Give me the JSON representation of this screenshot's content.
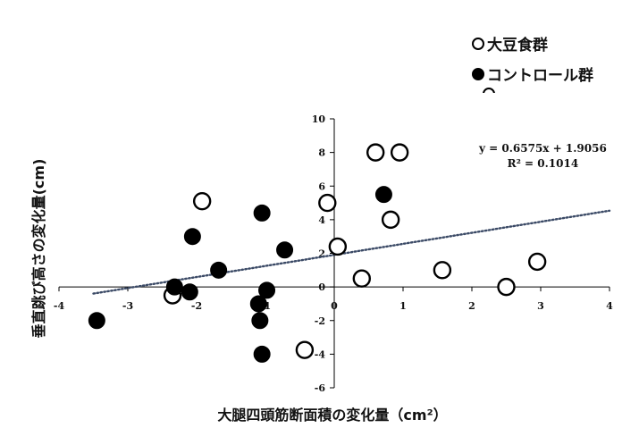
{
  "chart_data": {
    "type": "scatter",
    "title": "",
    "xlabel": "大腿四頭筋断面積の変化量（cm²）",
    "ylabel": "垂直跳び高さの変化量(cm)",
    "xlim": [
      -4,
      4
    ],
    "ylim": [
      -6,
      10
    ],
    "x_ticks": [
      "-4",
      "-3",
      "-2",
      "-1",
      "0",
      "1",
      "2",
      "3",
      "4"
    ],
    "y_ticks": [
      "-6",
      "-4",
      "-2",
      "0",
      "2",
      "4",
      "6",
      "8",
      "10"
    ],
    "grid": false,
    "legend_position": "top-right",
    "series": [
      {
        "name": "大豆食群",
        "marker": "open-circle",
        "points": [
          {
            "x": -2.35,
            "y": -0.5
          },
          {
            "x": -1.92,
            "y": 5.1
          },
          {
            "x": -0.43,
            "y": -3.75
          },
          {
            "x": -0.1,
            "y": 5.0
          },
          {
            "x": 0.05,
            "y": 2.4
          },
          {
            "x": 0.4,
            "y": 0.5
          },
          {
            "x": 0.6,
            "y": 8.0
          },
          {
            "x": 0.82,
            "y": 4.0
          },
          {
            "x": 0.95,
            "y": 8.0
          },
          {
            "x": 1.57,
            "y": 1.0
          },
          {
            "x": 2.5,
            "y": 0.0
          },
          {
            "x": 2.95,
            "y": 1.5
          }
        ]
      },
      {
        "name": "コントロール群",
        "marker": "filled-circle",
        "points": [
          {
            "x": -3.45,
            "y": -2.0
          },
          {
            "x": -2.32,
            "y": 0.0
          },
          {
            "x": -2.1,
            "y": -0.3
          },
          {
            "x": -2.06,
            "y": 3.0
          },
          {
            "x": -1.68,
            "y": 1.0
          },
          {
            "x": -1.1,
            "y": -1.0
          },
          {
            "x": -1.08,
            "y": -2.0
          },
          {
            "x": -1.05,
            "y": 4.4
          },
          {
            "x": -1.05,
            "y": -4.0
          },
          {
            "x": -0.98,
            "y": -0.2
          },
          {
            "x": -0.72,
            "y": 2.2
          },
          {
            "x": 0.72,
            "y": 5.5
          }
        ]
      }
    ],
    "trendline": {
      "style": "dotted",
      "color": "#3b4a66",
      "slope": 0.6575,
      "intercept": 1.9056,
      "x_range": [
        -3.5,
        4
      ],
      "equation": "y = 0.6575x + 1.9056",
      "r_squared": "R² = 0.1014"
    }
  }
}
